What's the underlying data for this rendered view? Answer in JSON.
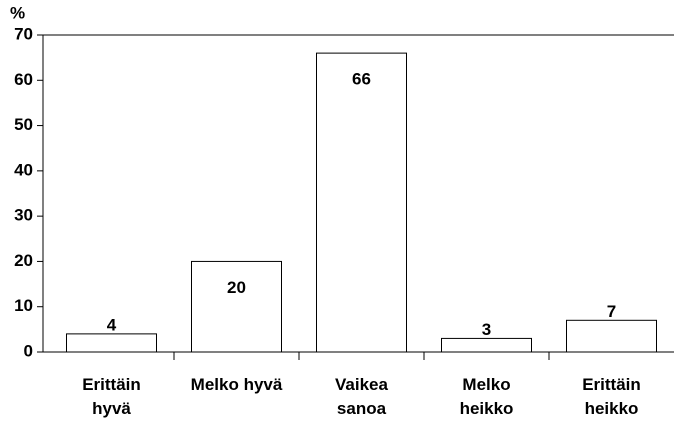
{
  "chart_data": {
    "type": "bar",
    "y_axis_label": "%",
    "categories": [
      [
        "Erittäin",
        "hyvä"
      ],
      [
        "Melko hyvä"
      ],
      [
        "Vaikea",
        "sanoa"
      ],
      [
        "Melko",
        "heikko"
      ],
      [
        "Erittäin",
        "heikko"
      ]
    ],
    "values": [
      4,
      20,
      66,
      3,
      7
    ],
    "color": "#ffffff",
    "ylim": [
      0,
      70
    ],
    "yticks": [
      0,
      10,
      20,
      30,
      40,
      50,
      60,
      70
    ]
  }
}
